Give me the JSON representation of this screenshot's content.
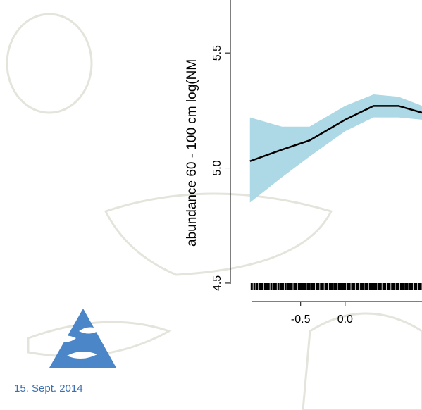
{
  "chart_data": {
    "type": "line",
    "y_label": "abundance 60 - 100 cm log(NM",
    "x": [
      -1.07,
      -0.71,
      -0.4,
      0.0,
      0.32,
      0.6,
      0.87
    ],
    "series": [
      {
        "color": "#000000",
        "values": [
          5.03,
          5.08,
          5.12,
          5.21,
          5.27,
          5.27,
          5.24
        ]
      }
    ],
    "band": {
      "color": "#add8e6",
      "upper": [
        5.22,
        5.18,
        5.18,
        5.27,
        5.32,
        5.31,
        5.27
      ],
      "lower": [
        4.85,
        4.96,
        5.05,
        5.16,
        5.22,
        5.22,
        5.21
      ]
    },
    "rug": [
      -1.05,
      -1.02,
      -0.99,
      -0.96,
      -0.93,
      -0.9,
      -0.88,
      -0.86,
      -0.83,
      -0.8,
      -0.78,
      -0.75,
      -0.72,
      -0.7,
      -0.67,
      -0.64,
      -0.62,
      -0.6,
      -0.57,
      -0.55,
      -0.52,
      -0.5,
      -0.47,
      -0.45,
      -0.42,
      -0.4,
      -0.37,
      -0.35,
      -0.32,
      -0.3,
      -0.27,
      -0.25,
      -0.22,
      -0.2,
      -0.17,
      -0.15,
      -0.12,
      -0.1,
      -0.07,
      -0.05,
      -0.02,
      0.0,
      0.03,
      0.05,
      0.08,
      0.1,
      0.13,
      0.15,
      0.18,
      0.2,
      0.23,
      0.25,
      0.28,
      0.3,
      0.33,
      0.35,
      0.38,
      0.4,
      0.43,
      0.45,
      0.48,
      0.5,
      0.53,
      0.55,
      0.58,
      0.6,
      0.63,
      0.65,
      0.68,
      0.7,
      0.73,
      0.75,
      0.78,
      0.8,
      0.83,
      0.85
    ],
    "xlim": [
      -1.29,
      0.865
    ],
    "ylim": [
      4.46,
      5.73
    ],
    "xticks": [
      -0.5,
      {
        "value": 0,
        "label": "0.0"
      }
    ],
    "yticks": [
      4.5,
      {
        "value": 5,
        "label": "5.0"
      },
      5.5
    ]
  },
  "footer": {
    "date": "15. Sept. 2014"
  }
}
